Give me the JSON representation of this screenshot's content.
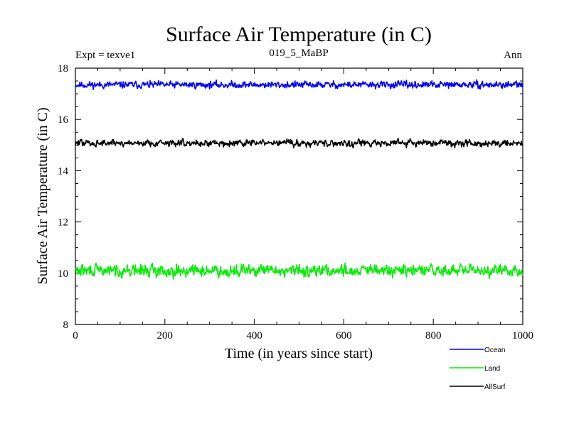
{
  "chart_data": {
    "type": "line",
    "title": "Surface Air Temperature (in C)",
    "subtitle_left": "Expt = texve1",
    "subtitle_center": "019_5_MaBP",
    "subtitle_right": "Ann",
    "xlabel": "Time (in years since start)",
    "ylabel": "Surface Air Temperature (in C)",
    "xlim": [
      0,
      1000
    ],
    "ylim": [
      8,
      18
    ],
    "x_ticks": [
      0,
      200,
      400,
      600,
      800,
      1000
    ],
    "x_tick_labels": [
      "0",
      "200",
      "400",
      "600",
      "800",
      "1000"
    ],
    "y_ticks": [
      8,
      10,
      12,
      14,
      16,
      18
    ],
    "y_tick_labels": [
      "8",
      "10",
      "12",
      "14",
      "16",
      "18"
    ],
    "legend_position": "bottom-right, below plot",
    "series": [
      {
        "name": "Ocean",
        "color": "#0000ff",
        "mean": 17.35,
        "spread": 0.1,
        "peak_max": 17.62,
        "peak_min": 16.95,
        "seed": 11
      },
      {
        "name": "Land",
        "color": "#00ee00",
        "mean": 10.1,
        "spread": 0.17,
        "peak_max": 10.65,
        "peak_min": 9.7,
        "seed": 29
      },
      {
        "name": "AllSurf",
        "color": "#000000",
        "mean": 15.08,
        "spread": 0.1,
        "peak_max": 15.45,
        "peak_min": 14.75,
        "seed": 47
      }
    ]
  }
}
